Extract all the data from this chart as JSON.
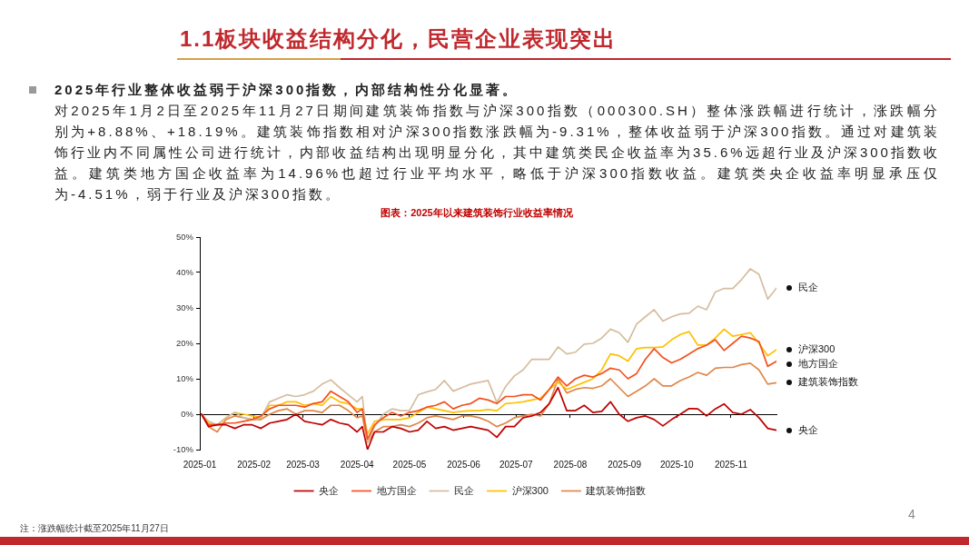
{
  "chart_data": {
    "type": "line",
    "title": "1.1板块收益结构分化，民营企业表现突出",
    "subtitle": "图表：2025年以来建筑装饰行业收益率情况",
    "annotations": [
      "2025年行业整体收益弱于沪深300指数，内部结构性分化显著。",
      "对2025年1月2日至2025年11月27日期间建筑装饰指数与沪深300指数（000300.SH）整体涨跌幅进行统计，涨跌幅分别为+8.88%、+18.19%。建筑装饰指数相对沪深300指数涨跌幅为-9.31%，整体收益弱于沪深300指数。通过对建筑装饰行业内不同属性公司进行统计，内部收益结构出现明显分化，其中建筑类民企收益率为35.6%远超行业及沪深300指数收益。建筑类地方国企收益率为14.96%也超过行业平均水平，略低于沪深300指数收益。建筑类央企收益率明显承压仅为-4.51%，弱于行业及沪深300指数。",
      "注：涨跌幅统计截至2025年11月27日",
      "4"
    ],
    "x": [
      "2025-01-02",
      "2025-01-06",
      "2025-01-11",
      "2025-01-16",
      "2025-01-21",
      "2025-01-26",
      "2025-01-31",
      "2025-02-05",
      "2025-02-10",
      "2025-02-15",
      "2025-02-20",
      "2025-02-25",
      "2025-03-02",
      "2025-03-07",
      "2025-03-12",
      "2025-03-17",
      "2025-03-22",
      "2025-03-27",
      "2025-04-01",
      "2025-04-04",
      "2025-04-07",
      "2025-04-11",
      "2025-04-16",
      "2025-04-21",
      "2025-04-26",
      "2025-05-01",
      "2025-05-06",
      "2025-05-11",
      "2025-05-16",
      "2025-05-21",
      "2025-05-26",
      "2025-05-31",
      "2025-06-05",
      "2025-06-10",
      "2025-06-15",
      "2025-06-20",
      "2025-06-25",
      "2025-06-30",
      "2025-07-05",
      "2025-07-10",
      "2025-07-15",
      "2025-07-20",
      "2025-07-25",
      "2025-07-30",
      "2025-08-04",
      "2025-08-09",
      "2025-08-14",
      "2025-08-19",
      "2025-08-24",
      "2025-08-29",
      "2025-09-03",
      "2025-09-08",
      "2025-09-13",
      "2025-09-18",
      "2025-09-23",
      "2025-09-28",
      "2025-10-03",
      "2025-10-08",
      "2025-10-13",
      "2025-10-18",
      "2025-10-23",
      "2025-10-28",
      "2025-11-02",
      "2025-11-07",
      "2025-11-12",
      "2025-11-17",
      "2025-11-22",
      "2025-11-27"
    ],
    "series": [
      {
        "name": "央企",
        "color": "#c00000",
        "values": [
          0,
          -3.5,
          -3,
          -3,
          -4,
          -3,
          -3,
          -4,
          -2.5,
          -2,
          -1.5,
          0,
          -2,
          -2.5,
          -3,
          -1.5,
          -2.5,
          -3,
          -5,
          -3.5,
          -10,
          -5,
          -5,
          -3.5,
          -4,
          -5,
          -4.5,
          -2,
          -4,
          -3.5,
          -4.5,
          -4,
          -3.5,
          -4,
          -4.5,
          -6.5,
          -3.5,
          -3.5,
          -1,
          -0.5,
          0.5,
          3,
          7.5,
          1,
          1,
          2.5,
          0.5,
          0.8,
          3.5,
          0,
          -2,
          -1,
          -0.5,
          -1.5,
          -3.3,
          -1.5,
          0,
          1.6,
          1.5,
          -0.5,
          1.5,
          2.9,
          0.5,
          0,
          1.3,
          -1,
          -4,
          -4.51
        ]
      },
      {
        "name": "地方国企",
        "color": "#f4511e",
        "values": [
          0,
          -3,
          -3,
          -2.5,
          -2.5,
          -2,
          -1.5,
          -0.5,
          1.5,
          2.5,
          2.5,
          2.5,
          2,
          3,
          3.5,
          6.5,
          5,
          3.5,
          0.5,
          1.5,
          -7,
          -3,
          -1,
          0.5,
          -0.5,
          0.5,
          1,
          2,
          2.5,
          3.5,
          1.5,
          2.5,
          3,
          4.5,
          4,
          3,
          5,
          5,
          5.5,
          5.5,
          4,
          7,
          10.5,
          8,
          10,
          11,
          10.5,
          11.5,
          13,
          12.5,
          10,
          11.5,
          15.5,
          18.5,
          16,
          14.5,
          15.5,
          17,
          18.5,
          19.5,
          21,
          18,
          20,
          22,
          21.5,
          20.5,
          13.5,
          14.96
        ]
      },
      {
        "name": "民企",
        "color": "#d5bd9f",
        "values": [
          0,
          -2,
          -3,
          -1,
          0.5,
          -1,
          -1.5,
          -1,
          3.5,
          4.5,
          5.5,
          5,
          5.5,
          6.5,
          8.5,
          9.7,
          7.5,
          5.5,
          3.5,
          5,
          -8,
          -3.5,
          0,
          1.5,
          1,
          1,
          5.5,
          6.3,
          7,
          9.5,
          6.5,
          7.5,
          8.5,
          9,
          9.5,
          3.3,
          7.8,
          10.8,
          12.5,
          15.5,
          15.5,
          15.5,
          19,
          17,
          17.5,
          19.8,
          20,
          21.5,
          24,
          23,
          20.3,
          25.5,
          27.5,
          29.5,
          26.3,
          27.5,
          28.3,
          28.5,
          30.5,
          29.5,
          34.5,
          35.5,
          35.5,
          38,
          41,
          39.5,
          32.5,
          35.6
        ]
      },
      {
        "name": "沪深300",
        "color": "#ffc000",
        "values": [
          0,
          -2.5,
          -3,
          -1,
          0.5,
          0,
          -0.5,
          -1,
          2.5,
          2.5,
          3.5,
          3.5,
          2.5,
          3,
          2.5,
          5,
          3.5,
          3,
          1.5,
          1.5,
          -5.5,
          -2,
          -1.5,
          -1.5,
          -1.5,
          -1,
          0.5,
          2,
          1.5,
          1,
          0.5,
          0.8,
          1,
          1,
          1.3,
          1,
          3,
          3.2,
          3.5,
          4,
          4.5,
          7,
          9,
          7,
          8,
          9,
          10,
          12.5,
          17,
          16.5,
          15,
          18.5,
          18.8,
          18.8,
          19,
          21,
          22.5,
          23.3,
          19.5,
          19.5,
          21.5,
          24,
          22,
          22.5,
          23,
          20,
          16.5,
          18.19
        ]
      },
      {
        "name": "建筑装饰指数",
        "color": "#e0874a",
        "values": [
          0,
          -3.5,
          -5,
          -1.5,
          -0.5,
          -1,
          -1.5,
          -1.5,
          0,
          1,
          1.5,
          0,
          1,
          1,
          0.5,
          2.5,
          2.5,
          1,
          -1,
          -0.5,
          -8,
          -5,
          -3.5,
          -3.5,
          -3,
          -3.5,
          -2.5,
          -1,
          -0.5,
          -1,
          -1.5,
          -0.5,
          -0.5,
          -1,
          -2,
          -3.5,
          -2.5,
          -1,
          -0.5,
          0,
          -0.5,
          3,
          10,
          6,
          7,
          7.5,
          7.3,
          8,
          10,
          7.5,
          5,
          6.5,
          8,
          10,
          8,
          8,
          9.5,
          10.5,
          11.8,
          11,
          13,
          13.2,
          13.2,
          14,
          14.4,
          12.5,
          8.5,
          8.88
        ]
      }
    ],
    "xlim": [
      "2025-01-01",
      "2025-11-27"
    ],
    "xticks": [
      "2025-01",
      "2025-02",
      "2025-03",
      "2025-04",
      "2025-05",
      "2025-06",
      "2025-07",
      "2025-08",
      "2025-09",
      "2025-10",
      "2025-11"
    ],
    "ylim": [
      -10,
      50
    ],
    "yticks": [
      {
        "value": -10,
        "label": "-10%"
      },
      {
        "value": 0,
        "label": "0%"
      },
      {
        "value": 10,
        "label": "10%"
      },
      {
        "value": 20,
        "label": "20%"
      },
      {
        "value": 30,
        "label": "30%"
      },
      {
        "value": 40,
        "label": "40%"
      },
      {
        "value": 50,
        "label": "50%"
      }
    ],
    "legend": "bottom"
  }
}
